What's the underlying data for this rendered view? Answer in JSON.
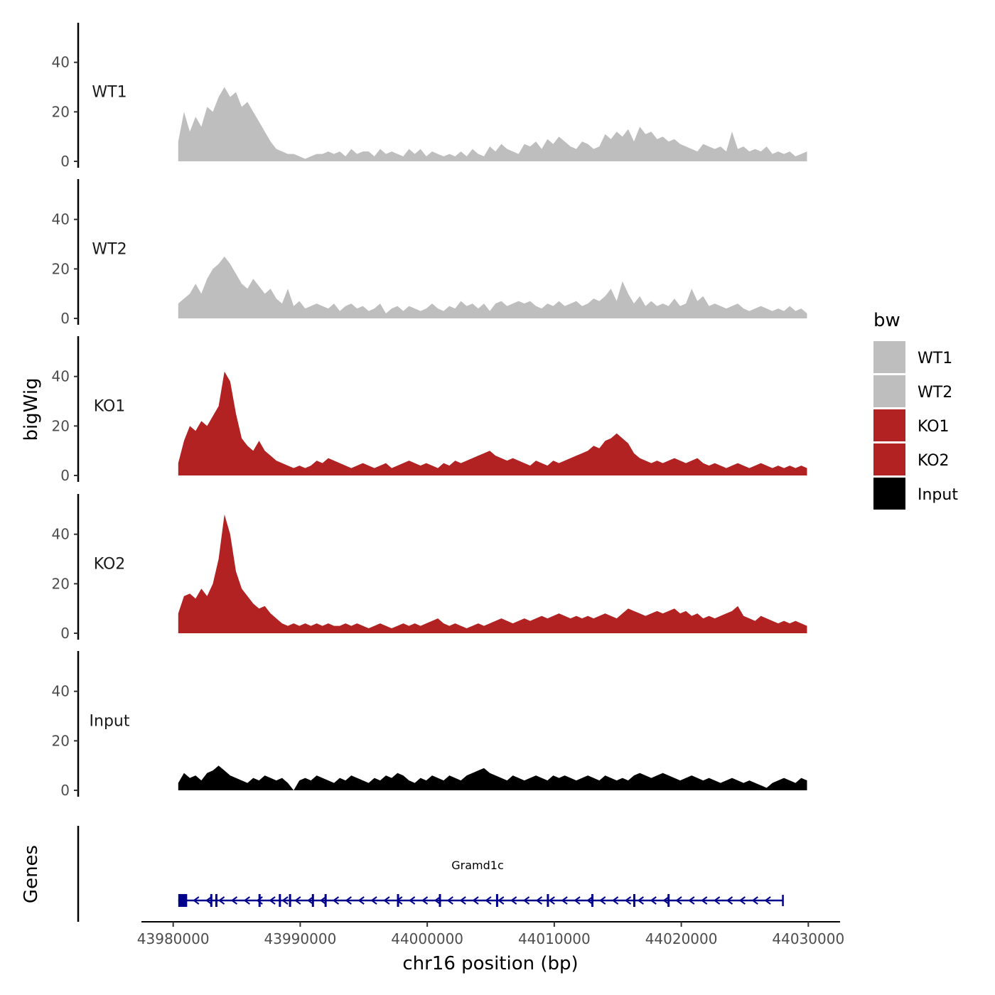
{
  "chart_data": {
    "type": "area",
    "ylabel": "bigWig",
    "xlabel": "chr16 position (bp)",
    "ylim": [
      0,
      55
    ],
    "y_ticks": [
      0,
      20,
      40
    ],
    "xlim": [
      43977500,
      44032500
    ],
    "x_ticks": [
      43980000,
      43990000,
      44000000,
      44010000,
      44020000,
      44030000
    ],
    "x_tick_labels": [
      "43980000",
      "43990000",
      "44000000",
      "44010000",
      "44020000",
      "44030000"
    ],
    "data_range": [
      43980400,
      44029900
    ],
    "legend": {
      "title": "bw",
      "position": "right",
      "entries": [
        {
          "label": "WT1",
          "color": "#bebebe"
        },
        {
          "label": "WT2",
          "color": "#bebebe"
        },
        {
          "label": "KO1",
          "color": "#b22222"
        },
        {
          "label": "KO2",
          "color": "#b22222"
        },
        {
          "label": "Input",
          "color": "#000000"
        }
      ]
    },
    "series": [
      {
        "name": "WT1",
        "color": "#bebebe",
        "x_start": 43980400,
        "x_end": 44029900,
        "values": [
          8,
          20,
          12,
          18,
          14,
          22,
          20,
          26,
          30,
          26,
          28,
          22,
          24,
          20,
          16,
          12,
          8,
          5,
          4,
          3,
          3,
          2,
          1,
          2,
          3,
          3,
          4,
          3,
          4,
          2,
          5,
          3,
          4,
          4,
          2,
          5,
          3,
          4,
          3,
          2,
          5,
          3,
          5,
          2,
          4,
          3,
          2,
          3,
          2,
          4,
          2,
          5,
          3,
          2,
          6,
          4,
          7,
          5,
          4,
          3,
          7,
          6,
          8,
          5,
          9,
          7,
          10,
          8,
          6,
          5,
          8,
          7,
          5,
          6,
          11,
          9,
          12,
          10,
          13,
          8,
          14,
          11,
          12,
          9,
          10,
          8,
          9,
          7,
          6,
          5,
          4,
          7,
          6,
          5,
          6,
          4,
          12,
          5,
          6,
          4,
          5,
          4,
          6,
          3,
          4,
          3,
          4,
          2,
          3,
          4
        ]
      },
      {
        "name": "WT2",
        "color": "#bebebe",
        "x_start": 43980400,
        "x_end": 44029900,
        "values": [
          6,
          8,
          10,
          14,
          10,
          16,
          20,
          22,
          25,
          22,
          18,
          14,
          12,
          16,
          13,
          10,
          12,
          8,
          6,
          12,
          5,
          7,
          4,
          5,
          6,
          5,
          4,
          6,
          3,
          5,
          6,
          4,
          5,
          3,
          4,
          6,
          2,
          4,
          5,
          3,
          5,
          4,
          3,
          4,
          6,
          4,
          3,
          5,
          4,
          7,
          5,
          6,
          4,
          6,
          3,
          6,
          7,
          5,
          6,
          7,
          6,
          7,
          5,
          4,
          6,
          5,
          7,
          5,
          6,
          7,
          5,
          6,
          8,
          7,
          9,
          12,
          7,
          15,
          10,
          6,
          9,
          5,
          7,
          5,
          6,
          5,
          8,
          5,
          6,
          12,
          7,
          9,
          5,
          6,
          5,
          4,
          5,
          6,
          4,
          3,
          4,
          5,
          4,
          3,
          4,
          3,
          5,
          3,
          4,
          2
        ]
      },
      {
        "name": "KO1",
        "color": "#b22222",
        "x_start": 43980400,
        "x_end": 44029900,
        "values": [
          5,
          14,
          20,
          18,
          22,
          20,
          24,
          28,
          42,
          38,
          25,
          15,
          12,
          10,
          14,
          10,
          8,
          6,
          5,
          4,
          3,
          4,
          3,
          4,
          6,
          5,
          7,
          6,
          5,
          4,
          3,
          4,
          5,
          4,
          3,
          4,
          5,
          3,
          4,
          5,
          6,
          5,
          4,
          5,
          4,
          3,
          5,
          4,
          6,
          5,
          6,
          7,
          8,
          9,
          10,
          8,
          7,
          6,
          7,
          6,
          5,
          4,
          6,
          5,
          4,
          6,
          5,
          6,
          7,
          8,
          9,
          10,
          12,
          11,
          14,
          15,
          17,
          15,
          13,
          9,
          7,
          6,
          5,
          6,
          5,
          6,
          7,
          6,
          5,
          6,
          7,
          5,
          4,
          5,
          4,
          3,
          4,
          5,
          4,
          3,
          4,
          5,
          4,
          3,
          4,
          3,
          4,
          3,
          4,
          3
        ]
      },
      {
        "name": "KO2",
        "color": "#b22222",
        "x_start": 43980400,
        "x_end": 44029900,
        "values": [
          8,
          15,
          16,
          14,
          18,
          15,
          20,
          30,
          48,
          40,
          25,
          18,
          15,
          12,
          10,
          11,
          8,
          6,
          4,
          3,
          4,
          3,
          4,
          3,
          4,
          3,
          4,
          3,
          3,
          4,
          3,
          4,
          3,
          2,
          3,
          4,
          3,
          2,
          3,
          4,
          3,
          4,
          3,
          4,
          5,
          6,
          4,
          3,
          4,
          3,
          2,
          3,
          4,
          3,
          4,
          5,
          6,
          5,
          4,
          5,
          6,
          5,
          6,
          7,
          6,
          7,
          8,
          7,
          6,
          7,
          6,
          7,
          6,
          7,
          8,
          7,
          6,
          8,
          10,
          9,
          8,
          7,
          8,
          9,
          8,
          9,
          10,
          8,
          9,
          7,
          8,
          6,
          7,
          6,
          7,
          8,
          9,
          11,
          7,
          6,
          5,
          7,
          6,
          5,
          4,
          5,
          4,
          5,
          4,
          3
        ]
      },
      {
        "name": "Input",
        "color": "#000000",
        "x_start": 43980400,
        "x_end": 44029900,
        "values": [
          3,
          7,
          5,
          6,
          4,
          7,
          8,
          10,
          8,
          6,
          5,
          4,
          3,
          5,
          4,
          6,
          5,
          4,
          5,
          3,
          0,
          4,
          5,
          4,
          6,
          5,
          4,
          3,
          5,
          4,
          6,
          5,
          4,
          3,
          5,
          4,
          6,
          5,
          7,
          6,
          4,
          3,
          5,
          4,
          6,
          5,
          4,
          6,
          5,
          4,
          6,
          7,
          8,
          9,
          7,
          6,
          5,
          4,
          6,
          5,
          4,
          5,
          6,
          5,
          4,
          6,
          5,
          6,
          5,
          4,
          5,
          6,
          5,
          4,
          6,
          5,
          4,
          5,
          4,
          6,
          7,
          6,
          5,
          6,
          7,
          6,
          5,
          4,
          5,
          6,
          5,
          4,
          5,
          4,
          3,
          4,
          5,
          4,
          3,
          4,
          3,
          2,
          1,
          3,
          4,
          5,
          4,
          3,
          5,
          4
        ]
      }
    ],
    "genes": {
      "panel_label": "Genes",
      "name": "Gramd1c",
      "color": "#00008b",
      "start": 43980400,
      "end": 44028000,
      "strand": "-",
      "utr": [
        43980400,
        43981100
      ],
      "exons": [
        43983000,
        43983400,
        43986800,
        43988400,
        43989200,
        43991000,
        43992000,
        43997700,
        44001000,
        44005500,
        44009500,
        44013000,
        44016300,
        44019000
      ]
    }
  }
}
